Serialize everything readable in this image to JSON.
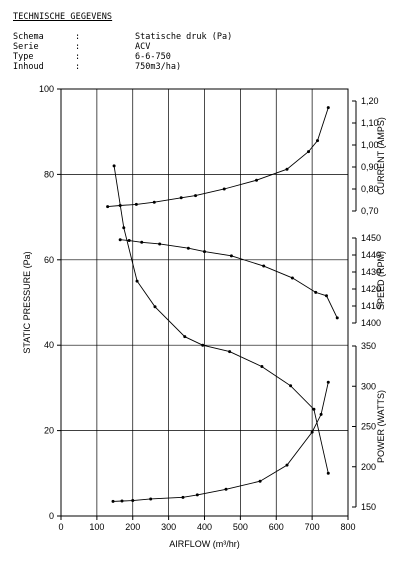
{
  "header": {
    "title": "TECHNISCHE GEGEVENS",
    "specs": [
      {
        "key": "Schema",
        "sep": ":",
        "value": "Statische druk (Pa)"
      },
      {
        "key": "Serie",
        "sep": ":",
        "value": "ACV"
      },
      {
        "key": "Type",
        "sep": ":",
        "value": "6-6-750"
      },
      {
        "key": "Inhoud",
        "sep": ":",
        "value": "750m3/ha)"
      }
    ]
  },
  "chart_data": {
    "type": "line",
    "xlabel": "AIRFLOW (m³/hr)",
    "xlim": [
      0,
      800
    ],
    "xticks": [
      0,
      100,
      200,
      300,
      400,
      500,
      600,
      700,
      800
    ],
    "ylabel": "STATIC PRESSURE (Pa)",
    "ylim": [
      0,
      100
    ],
    "yticks": [
      0,
      20,
      40,
      60,
      80,
      100
    ],
    "grid": true,
    "right_axes": [
      {
        "label": "CURRENT (AMPS)",
        "range": [
          0.7,
          1.2
        ],
        "ticks": [
          "0,70",
          "0,80",
          "0,90",
          "1,00",
          "1,10",
          "1,20"
        ],
        "tick_values": [
          0.7,
          0.8,
          0.9,
          1.0,
          1.1,
          1.2
        ]
      },
      {
        "label": "SPEED (RPM)",
        "range": [
          1400,
          1450
        ],
        "ticks": [
          "1400",
          "1410",
          "1420",
          "1430",
          "1440",
          "1450"
        ],
        "tick_values": [
          1400,
          1410,
          1420,
          1430,
          1440,
          1450
        ]
      },
      {
        "label": "POWER (WATTS)",
        "range": [
          150,
          350
        ],
        "ticks": [
          "150",
          "200",
          "250",
          "300",
          "350"
        ],
        "tick_values": [
          150,
          200,
          250,
          300,
          350
        ]
      }
    ],
    "series": [
      {
        "axis": "left",
        "x": [
          148,
          175,
          212,
          262,
          345,
          395,
          470,
          560,
          640,
          705,
          745
        ],
        "y": [
          82,
          67.5,
          55,
          49,
          42,
          40,
          38.5,
          35,
          30.5,
          25,
          10
        ]
      },
      {
        "axis": "CURRENT (AMPS)",
        "x": [
          130,
          165,
          210,
          260,
          335,
          375,
          455,
          545,
          630,
          690,
          715,
          745
        ],
        "y": [
          0.72,
          0.725,
          0.73,
          0.74,
          0.76,
          0.77,
          0.8,
          0.84,
          0.89,
          0.97,
          1.02,
          1.17
        ]
      },
      {
        "axis": "SPEED (RPM)",
        "x": [
          165,
          190,
          225,
          275,
          355,
          400,
          475,
          565,
          645,
          710,
          740,
          770
        ],
        "y": [
          1449,
          1448.5,
          1447.5,
          1446.5,
          1444,
          1442,
          1439.5,
          1433.5,
          1426.5,
          1418,
          1416,
          1403
        ]
      },
      {
        "axis": "POWER (WATTS)",
        "x": [
          145,
          170,
          200,
          250,
          340,
          380,
          460,
          555,
          630,
          700,
          725,
          745
        ],
        "y": [
          157,
          157.5,
          158,
          160,
          162,
          165,
          172,
          182,
          202,
          243,
          265,
          305
        ]
      }
    ]
  }
}
